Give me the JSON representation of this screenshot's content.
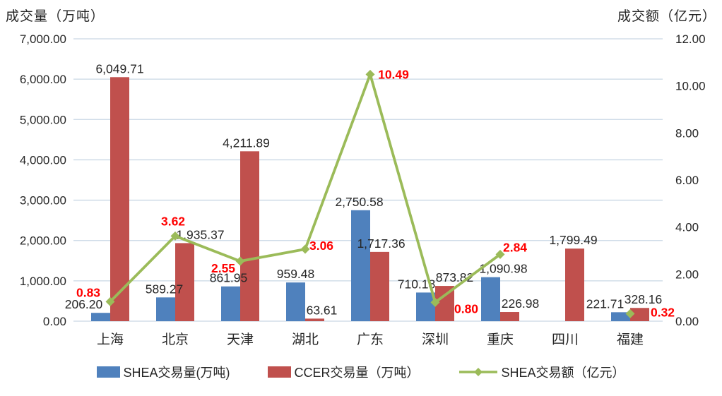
{
  "chart_data": {
    "type": "combo-bar-line",
    "categories": [
      "上海",
      "北京",
      "天津",
      "湖北",
      "广东",
      "深圳",
      "重庆",
      "四川",
      "福建"
    ],
    "series": [
      {
        "name": "SHEA交易量(万吨)",
        "type": "bar",
        "axis": "left",
        "color": "#4F81BD",
        "values": [
          206.2,
          589.27,
          861.95,
          959.48,
          2750.58,
          710.18,
          1090.98,
          null,
          221.71
        ],
        "labels": [
          "206.20",
          "589.27",
          "861.95",
          "959.48",
          "2,750.58",
          "710.18",
          "1,090.98",
          null,
          "221.71"
        ]
      },
      {
        "name": "CCER交易量（万吨）",
        "type": "bar",
        "axis": "left",
        "color": "#C0504D",
        "values": [
          6049.71,
          1935.37,
          4211.89,
          63.61,
          1717.36,
          873.82,
          226.98,
          1799.49,
          328.16
        ],
        "labels": [
          "6,049.71",
          "1,935.37",
          "4,211.89",
          "63.61",
          "1,717.36",
          "873.82",
          "226.98",
          "1,799.49",
          "328.16"
        ]
      },
      {
        "name": "SHEA交易额（亿元）",
        "type": "line",
        "axis": "right",
        "color": "#9BBB59",
        "marker": "diamond",
        "label_color": "#FF0000",
        "values": [
          0.83,
          3.62,
          2.55,
          3.06,
          10.49,
          0.8,
          2.84,
          null,
          0.32
        ],
        "labels": [
          "0.83",
          "3.62",
          "2.55",
          "3.06",
          "10.49",
          "0.80",
          "2.84",
          null,
          "0.32"
        ]
      }
    ],
    "left_axis": {
      "title": "成交量（万吨）",
      "min": 0,
      "max": 7000,
      "step": 1000,
      "tick_labels": [
        "0.00",
        "1,000.00",
        "2,000.00",
        "3,000.00",
        "4,000.00",
        "5,000.00",
        "6,000.00",
        "7,000.00"
      ]
    },
    "right_axis": {
      "title": "成交额（亿元）",
      "min": 0,
      "max": 12,
      "step": 2,
      "tick_labels": [
        "0.00",
        "2.00",
        "4.00",
        "6.00",
        "8.00",
        "10.00",
        "12.00"
      ]
    },
    "legend": {
      "position": "bottom",
      "items": [
        "SHEA交易量(万吨)",
        "CCER交易量（万吨）",
        "SHEA交易额（亿元）"
      ]
    },
    "grid": true,
    "colors": {
      "gridline": "#C9D7E4",
      "text": "#262626",
      "line_label": "#FF0000"
    }
  }
}
